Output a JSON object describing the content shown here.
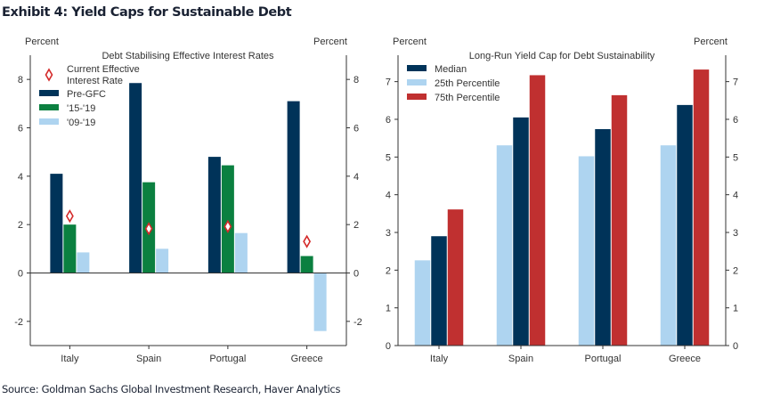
{
  "title": "Exhibit 4: Yield Caps for Sustainable Debt",
  "source": "Source: Goldman Sachs Global Investment Research, Haver Analytics",
  "chart_data": [
    {
      "type": "bar",
      "title": "Debt Stabilising Effective Interest Rates",
      "ylabel_left": "Percent",
      "ylabel_right": "Percent",
      "categories": [
        "Italy",
        "Spain",
        "Portugal",
        "Greece"
      ],
      "ylim": [
        -3,
        9
      ],
      "yticks": [
        -2,
        0,
        2,
        4,
        6,
        8
      ],
      "legend_position": "top-left",
      "series": [
        {
          "name": "Pre-GFC",
          "color": "#003359",
          "values": [
            4.1,
            7.85,
            4.8,
            7.1
          ]
        },
        {
          "name": "'15-'19",
          "color": "#0b8040",
          "values": [
            2.0,
            3.75,
            4.45,
            0.7
          ]
        },
        {
          "name": "'09-'19",
          "color": "#aed4f0",
          "values": [
            0.85,
            1.0,
            1.65,
            -2.4
          ]
        }
      ],
      "markers": {
        "name_lines": [
          "Current Effective",
          "Interest Rate"
        ],
        "type": "diamond",
        "color": "#d42a2a",
        "values": [
          2.35,
          1.83,
          1.92,
          1.3
        ]
      }
    },
    {
      "type": "bar",
      "title": "Long-Run Yield Cap for Debt Sustainability",
      "ylabel_left": "Percent",
      "ylabel_right": "Percent",
      "categories": [
        "Italy",
        "Spain",
        "Portugal",
        "Greece"
      ],
      "ylim": [
        0,
        7.7
      ],
      "yticks": [
        0,
        1,
        2,
        3,
        4,
        5,
        6,
        7
      ],
      "legend_position": "top-left",
      "legend_order": [
        "Median",
        "25th Percentile",
        "75th Percentile"
      ],
      "series": [
        {
          "name": "25th Percentile",
          "color": "#aed4f0",
          "values": [
            2.26,
            5.31,
            5.02,
            5.31
          ]
        },
        {
          "name": "Median",
          "color": "#003359",
          "values": [
            2.9,
            6.05,
            5.74,
            6.38
          ]
        },
        {
          "name": "75th Percentile",
          "color": "#c03030",
          "values": [
            3.61,
            7.17,
            6.64,
            7.32
          ]
        }
      ]
    }
  ]
}
